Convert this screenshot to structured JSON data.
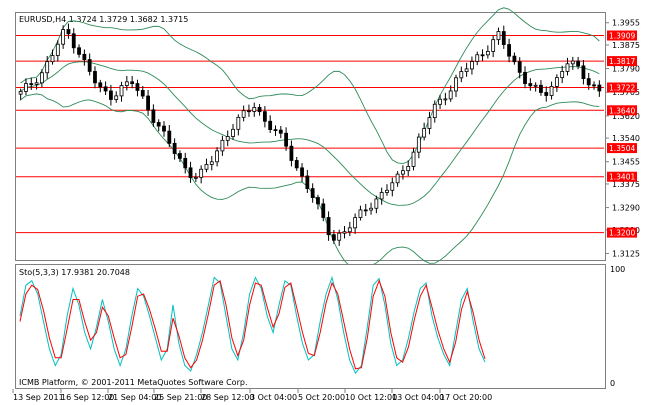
{
  "chart_data": [
    {
      "type": "candlestick",
      "title": "EURUSD,H4  1.3724 1.3729 1.3682 1.3715",
      "symbol": "EURUSD",
      "timeframe": "H4",
      "last_bar": {
        "open": 1.3724,
        "high": 1.3729,
        "low": 1.3682,
        "close": 1.3715
      },
      "y_ticks": [
        "1.3955",
        "1.3875",
        "1.3790",
        "1.3705",
        "1.3620",
        "1.3540",
        "1.3455",
        "1.3375",
        "1.3290",
        "1.3210",
        "1.3125"
      ],
      "ylim": [
        1.3105,
        1.399
      ],
      "x_ticks": [
        "13 Sep 2011",
        "16 Sep 12:00",
        "21 Sep 04:00",
        "25 Sep 21:00",
        "28 Sep 12:00",
        "3 Oct 04:00",
        "5 Oct 20:00",
        "10 Oct 12:00",
        "13 Oct 04:00",
        "17 Oct 20:00"
      ],
      "horizontal_levels": [
        {
          "label": "1.3909",
          "value": 1.3909
        },
        {
          "label": "1.3817",
          "value": 1.3817
        },
        {
          "label": "1.3722",
          "value": 1.3722
        },
        {
          "label": "1.3640",
          "value": 1.364
        },
        {
          "label": "1.3504",
          "value": 1.3504
        },
        {
          "label": "1.3401",
          "value": 1.3401
        },
        {
          "label": "1.3200",
          "value": 1.32
        }
      ],
      "indicator": "Bollinger Bands",
      "price_path": [
        1.37,
        1.374,
        1.378,
        1.385,
        1.393,
        1.387,
        1.379,
        1.372,
        1.369,
        1.372,
        1.374,
        1.368,
        1.361,
        1.354,
        1.348,
        1.342,
        1.34,
        1.345,
        1.352,
        1.358,
        1.362,
        1.366,
        1.36,
        1.356,
        1.35,
        1.342,
        1.335,
        1.326,
        1.318,
        1.32,
        1.324,
        1.329,
        1.332,
        1.336,
        1.34,
        1.347,
        1.355,
        1.364,
        1.369,
        1.374,
        1.379,
        1.383,
        1.387,
        1.391,
        1.383,
        1.377,
        1.372,
        1.369,
        1.374,
        1.382,
        1.379,
        1.374,
        1.3715
      ]
    },
    {
      "type": "line",
      "title": "Sto(5,3,3) 17.9381 20.7048",
      "ylim": [
        0,
        100
      ],
      "y_ticks": [
        "100",
        "0"
      ],
      "series": [
        {
          "values": [
            60,
            88,
            92,
            80,
            55,
            30,
            15,
            25,
            60,
            85,
            70,
            45,
            30,
            50,
            75,
            55,
            30,
            15,
            30,
            60,
            85,
            78,
            60,
            40,
            20,
            30,
            70,
            35,
            15,
            10,
            25,
            45,
            70,
            95,
            90,
            60,
            30,
            20,
            45,
            80,
            95,
            85,
            60,
            45,
            70,
            92,
            88,
            60,
            35,
            20,
            25,
            55,
            80,
            95,
            75,
            45,
            20,
            8,
            15,
            50,
            88,
            94,
            70,
            35,
            15,
            20,
            40,
            65,
            85,
            90,
            60,
            40,
            25,
            15,
            45,
            75,
            85,
            55,
            30,
            18
          ]
        },
        {
          "values": [
            55,
            80,
            88,
            84,
            65,
            40,
            22,
            22,
            48,
            75,
            75,
            55,
            38,
            45,
            68,
            60,
            40,
            22,
            25,
            50,
            78,
            80,
            66,
            48,
            28,
            28,
            58,
            42,
            22,
            13,
            20,
            38,
            62,
            88,
            92,
            70,
            40,
            24,
            38,
            70,
            90,
            88,
            68,
            50,
            62,
            86,
            90,
            68,
            45,
            26,
            24,
            45,
            72,
            90,
            80,
            55,
            30,
            12,
            13,
            40,
            78,
            92,
            78,
            45,
            22,
            18,
            32,
            57,
            78,
            88,
            68,
            47,
            30,
            18,
            36,
            66,
            82,
            63,
            38,
            21
          ]
        }
      ]
    }
  ],
  "copyright": "ICMB Platform, © 2001-2011 MetaQuotes Software Corp."
}
